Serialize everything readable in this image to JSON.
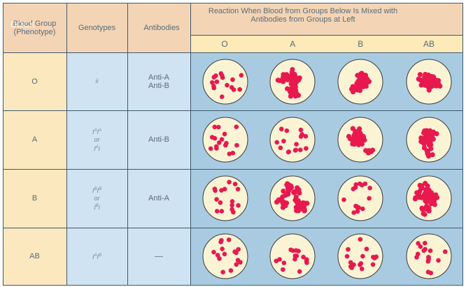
{
  "headers": {
    "blood_group": "Blood Group (Phenotype)",
    "genotypes": "Genotypes",
    "antibodies": "Antibodies",
    "reaction": "Reaction When Blood from Groups Below Is Mixed with Antibodies from Groups at Left",
    "reaction_columns": [
      "O",
      "A",
      "B",
      "AB"
    ]
  },
  "watermark": "DOCX",
  "rows": [
    {
      "group": "O",
      "genotypes": [
        {
          "g": "i",
          "s": ""
        },
        {
          "g": "i",
          "s": ""
        }
      ],
      "genotype_alt": null,
      "antibodies": [
        "Anti-A",
        "Anti-B"
      ],
      "reactions": [
        "no clumping",
        "clumping",
        "clumping",
        "clumping"
      ]
    },
    {
      "group": "A",
      "genotypes": [
        {
          "g": "I",
          "s": "A"
        },
        {
          "g": "I",
          "s": "A"
        }
      ],
      "genotype_or": "or",
      "genotype_alt": [
        {
          "g": "I",
          "s": "A"
        },
        {
          "g": "i",
          "s": ""
        }
      ],
      "antibodies": [
        "Anti-B"
      ],
      "reactions": [
        "no clumping",
        "no clumping",
        "clumping",
        "clumping"
      ]
    },
    {
      "group": "B",
      "genotypes": [
        {
          "g": "I",
          "s": "B"
        },
        {
          "g": "I",
          "s": "B"
        }
      ],
      "genotype_or": "or",
      "genotype_alt": [
        {
          "g": "I",
          "s": "B"
        },
        {
          "g": "i",
          "s": ""
        }
      ],
      "antibodies": [
        "Anti-A"
      ],
      "reactions": [
        "no clumping",
        "clumping",
        "no clumping",
        "clumping"
      ]
    },
    {
      "group": "AB",
      "genotypes": [
        {
          "g": "I",
          "s": "A"
        },
        {
          "g": "I",
          "s": "B"
        }
      ],
      "genotype_alt": null,
      "antibodies": [],
      "reactions": [
        "no clumping",
        "no clumping",
        "no clumping",
        "no clumping"
      ]
    }
  ],
  "colors": {
    "plate": "#fbf4d4",
    "cell": "#e8194f",
    "rim": "#3a3a3a"
  }
}
